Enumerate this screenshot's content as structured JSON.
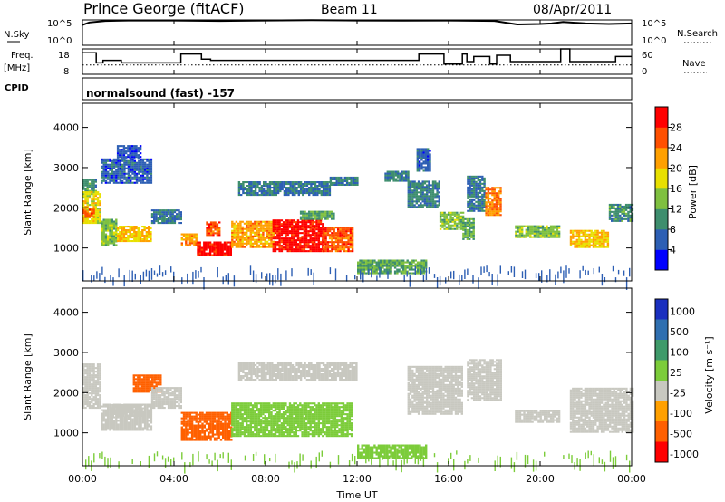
{
  "header": {
    "station": "Prince George (fitACF)",
    "beam": "Beam 11",
    "date": "08/Apr/2011"
  },
  "top_panel": {
    "left_label": "N.Sky",
    "right_label": "N.Search",
    "left_ticks": [
      "10^5",
      "10^0"
    ],
    "right_ticks": [
      "10^5",
      "10^0"
    ]
  },
  "freq_panel": {
    "left_label_1": "Freq.",
    "left_label_2": "[MHz]",
    "right_label": "Nave",
    "left_ticks": [
      "18",
      "8"
    ],
    "right_ticks": [
      "60",
      "0"
    ]
  },
  "cpid": {
    "label": "CPID",
    "text": "normalsound (fast) -157"
  },
  "power_panel": {
    "ylabel": "Slant Range [km]",
    "yticks": [
      "4000",
      "3000",
      "2000",
      "1000"
    ],
    "colorbar_label": "Power [dB]",
    "colorbar_ticks": [
      "28",
      "24",
      "20",
      "16",
      "12",
      "8",
      "4"
    ],
    "colors": [
      "#0000ff",
      "#2d5fb4",
      "#3e8e6e",
      "#7fc040",
      "#e8e000",
      "#ffa000",
      "#ff5000",
      "#ff0000"
    ]
  },
  "velocity_panel": {
    "ylabel": "Slant Range [km]",
    "yticks": [
      "4000",
      "3000",
      "2000",
      "1000"
    ],
    "colorbar_label": "Velocity [m s⁻¹]",
    "colorbar_ticks": [
      "1000",
      "500",
      "100",
      "25",
      "-25",
      "-100",
      "-500",
      "-1000"
    ],
    "colors": [
      "#1a2fbf",
      "#2f6fb0",
      "#3f9a6a",
      "#7ccc3a",
      "#c8c8c0",
      "#ffa000",
      "#ff6000",
      "#ff0000"
    ]
  },
  "xaxis": {
    "label": "Time UT",
    "ticks": [
      "00:00",
      "04:00",
      "08:00",
      "12:00",
      "16:00",
      "20:00",
      "00:00"
    ]
  },
  "chart_data": {
    "type": "heatmap",
    "x_range_hours": [
      0,
      24
    ],
    "y_range_km": [
      180,
      4600
    ],
    "nsky_log_range": [
      0,
      5
    ],
    "freq_range_mhz": [
      8,
      18
    ],
    "nave_range": [
      0,
      60
    ],
    "nsky_level": [
      [
        0.0,
        4.0
      ],
      [
        0.3,
        4.5
      ],
      [
        1.0,
        4.8
      ],
      [
        2.0,
        4.9
      ],
      [
        4.0,
        4.9
      ],
      [
        6.0,
        4.8
      ],
      [
        8.0,
        4.9
      ],
      [
        10.0,
        4.95
      ],
      [
        12.0,
        4.9
      ],
      [
        14.0,
        4.85
      ],
      [
        16.0,
        4.9
      ],
      [
        18.0,
        4.8
      ],
      [
        19.0,
        4.1
      ],
      [
        20.0,
        4.2
      ],
      [
        20.5,
        4.3
      ],
      [
        21.0,
        4.6
      ],
      [
        22.0,
        4.3
      ],
      [
        23.0,
        4.2
      ],
      [
        24.0,
        4.3
      ]
    ],
    "freq_steps": [
      [
        0.0,
        0.6,
        16.5
      ],
      [
        0.6,
        0.9,
        12.5
      ],
      [
        0.9,
        1.7,
        13.5
      ],
      [
        1.7,
        4.3,
        12.5
      ],
      [
        4.3,
        5.2,
        16.0
      ],
      [
        5.2,
        5.6,
        14.0
      ],
      [
        5.6,
        14.7,
        13.5
      ],
      [
        14.7,
        15.8,
        16.0
      ],
      [
        15.8,
        16.6,
        12.0
      ],
      [
        16.6,
        16.8,
        16.0
      ],
      [
        16.8,
        17.1,
        13.0
      ],
      [
        17.1,
        17.8,
        15.0
      ],
      [
        17.8,
        18.1,
        12.0
      ],
      [
        18.1,
        18.7,
        15.5
      ],
      [
        18.7,
        20.9,
        13.0
      ],
      [
        20.9,
        21.3,
        18.0
      ],
      [
        21.3,
        23.3,
        13.0
      ],
      [
        23.3,
        24.0,
        15.0
      ]
    ],
    "nave_level": 22,
    "power_blobs": [
      {
        "t0": 0.0,
        "t1": 0.6,
        "r0": 2400,
        "r1": 2700,
        "v": 10
      },
      {
        "t0": 0.0,
        "t1": 0.8,
        "r0": 1600,
        "r1": 2400,
        "v": 18
      },
      {
        "t0": 0.0,
        "t1": 0.5,
        "r0": 1750,
        "r1": 1950,
        "v": 26
      },
      {
        "t0": 0.8,
        "t1": 1.5,
        "r0": 1050,
        "r1": 1700,
        "v": 14
      },
      {
        "t0": 1.5,
        "t1": 3.0,
        "r0": 1150,
        "r1": 1550,
        "v": 20
      },
      {
        "t0": 0.8,
        "t1": 3.0,
        "r0": 2600,
        "r1": 3200,
        "v": 6
      },
      {
        "t0": 1.5,
        "t1": 2.5,
        "r0": 3200,
        "r1": 3550,
        "v": 5
      },
      {
        "t0": 3.0,
        "t1": 4.3,
        "r0": 1600,
        "r1": 1950,
        "v": 8
      },
      {
        "t0": 4.3,
        "t1": 5.0,
        "r0": 1050,
        "r1": 1350,
        "v": 22
      },
      {
        "t0": 5.0,
        "t1": 6.5,
        "r0": 800,
        "r1": 1150,
        "v": 30
      },
      {
        "t0": 5.4,
        "t1": 6.0,
        "r0": 1300,
        "r1": 1650,
        "v": 26
      },
      {
        "t0": 6.5,
        "t1": 8.3,
        "r0": 1000,
        "r1": 1650,
        "v": 22
      },
      {
        "t0": 8.3,
        "t1": 10.5,
        "r0": 900,
        "r1": 1700,
        "v": 30
      },
      {
        "t0": 10.5,
        "t1": 11.8,
        "r0": 900,
        "r1": 1500,
        "v": 26
      },
      {
        "t0": 9.5,
        "t1": 11.0,
        "r0": 1700,
        "r1": 1900,
        "v": 12
      },
      {
        "t0": 6.8,
        "t1": 10.8,
        "r0": 2300,
        "r1": 2650,
        "v": 8
      },
      {
        "t0": 10.8,
        "t1": 12.0,
        "r0": 2550,
        "r1": 2750,
        "v": 8
      },
      {
        "t0": 12.0,
        "t1": 15.0,
        "r0": 350,
        "r1": 700,
        "v": 12
      },
      {
        "t0": 13.2,
        "t1": 14.2,
        "r0": 2650,
        "r1": 2900,
        "v": 9
      },
      {
        "t0": 14.2,
        "t1": 15.6,
        "r0": 2000,
        "r1": 2650,
        "v": 9
      },
      {
        "t0": 14.6,
        "t1": 15.2,
        "r0": 2900,
        "r1": 3450,
        "v": 6
      },
      {
        "t0": 15.6,
        "t1": 16.6,
        "r0": 1450,
        "r1": 1900,
        "v": 14
      },
      {
        "t0": 16.8,
        "t1": 17.6,
        "r0": 1900,
        "r1": 2800,
        "v": 8
      },
      {
        "t0": 17.6,
        "t1": 18.3,
        "r0": 1800,
        "r1": 2500,
        "v": 24
      },
      {
        "t0": 16.6,
        "t1": 17.1,
        "r0": 1200,
        "r1": 1700,
        "v": 12
      },
      {
        "t0": 18.9,
        "t1": 20.8,
        "r0": 1250,
        "r1": 1550,
        "v": 14
      },
      {
        "t0": 21.3,
        "t1": 23.0,
        "r0": 1000,
        "r1": 1450,
        "v": 20
      },
      {
        "t0": 23.0,
        "t1": 24.0,
        "r0": 1650,
        "r1": 2100,
        "v": 10
      }
    ],
    "velocity_blobs": [
      {
        "t0": 0.0,
        "t1": 0.8,
        "r0": 1600,
        "r1": 2700,
        "v": 0
      },
      {
        "t0": 0.8,
        "t1": 3.0,
        "r0": 1050,
        "r1": 1700,
        "v": 0
      },
      {
        "t0": 1.2,
        "t1": 2.6,
        "r0": 1400,
        "r1": 1700,
        "v": 0
      },
      {
        "t0": 2.2,
        "t1": 3.4,
        "r0": 2000,
        "r1": 2450,
        "v": -150
      },
      {
        "t0": 3.0,
        "t1": 4.3,
        "r0": 1600,
        "r1": 2100,
        "v": 0
      },
      {
        "t0": 4.3,
        "t1": 6.5,
        "r0": 800,
        "r1": 1500,
        "v": -150
      },
      {
        "t0": 6.5,
        "t1": 11.8,
        "r0": 900,
        "r1": 1750,
        "v": 60
      },
      {
        "t0": 6.8,
        "t1": 12.0,
        "r0": 2300,
        "r1": 2750,
        "v": 0
      },
      {
        "t0": 12.0,
        "t1": 15.0,
        "r0": 350,
        "r1": 700,
        "v": 60
      },
      {
        "t0": 14.2,
        "t1": 16.6,
        "r0": 1450,
        "r1": 2650,
        "v": 0
      },
      {
        "t0": 16.8,
        "t1": 18.3,
        "r0": 1800,
        "r1": 2800,
        "v": 0
      },
      {
        "t0": 18.9,
        "t1": 20.8,
        "r0": 1250,
        "r1": 1550,
        "v": 0
      },
      {
        "t0": 21.3,
        "t1": 24.0,
        "r0": 1000,
        "r1": 2100,
        "v": 0
      }
    ]
  }
}
